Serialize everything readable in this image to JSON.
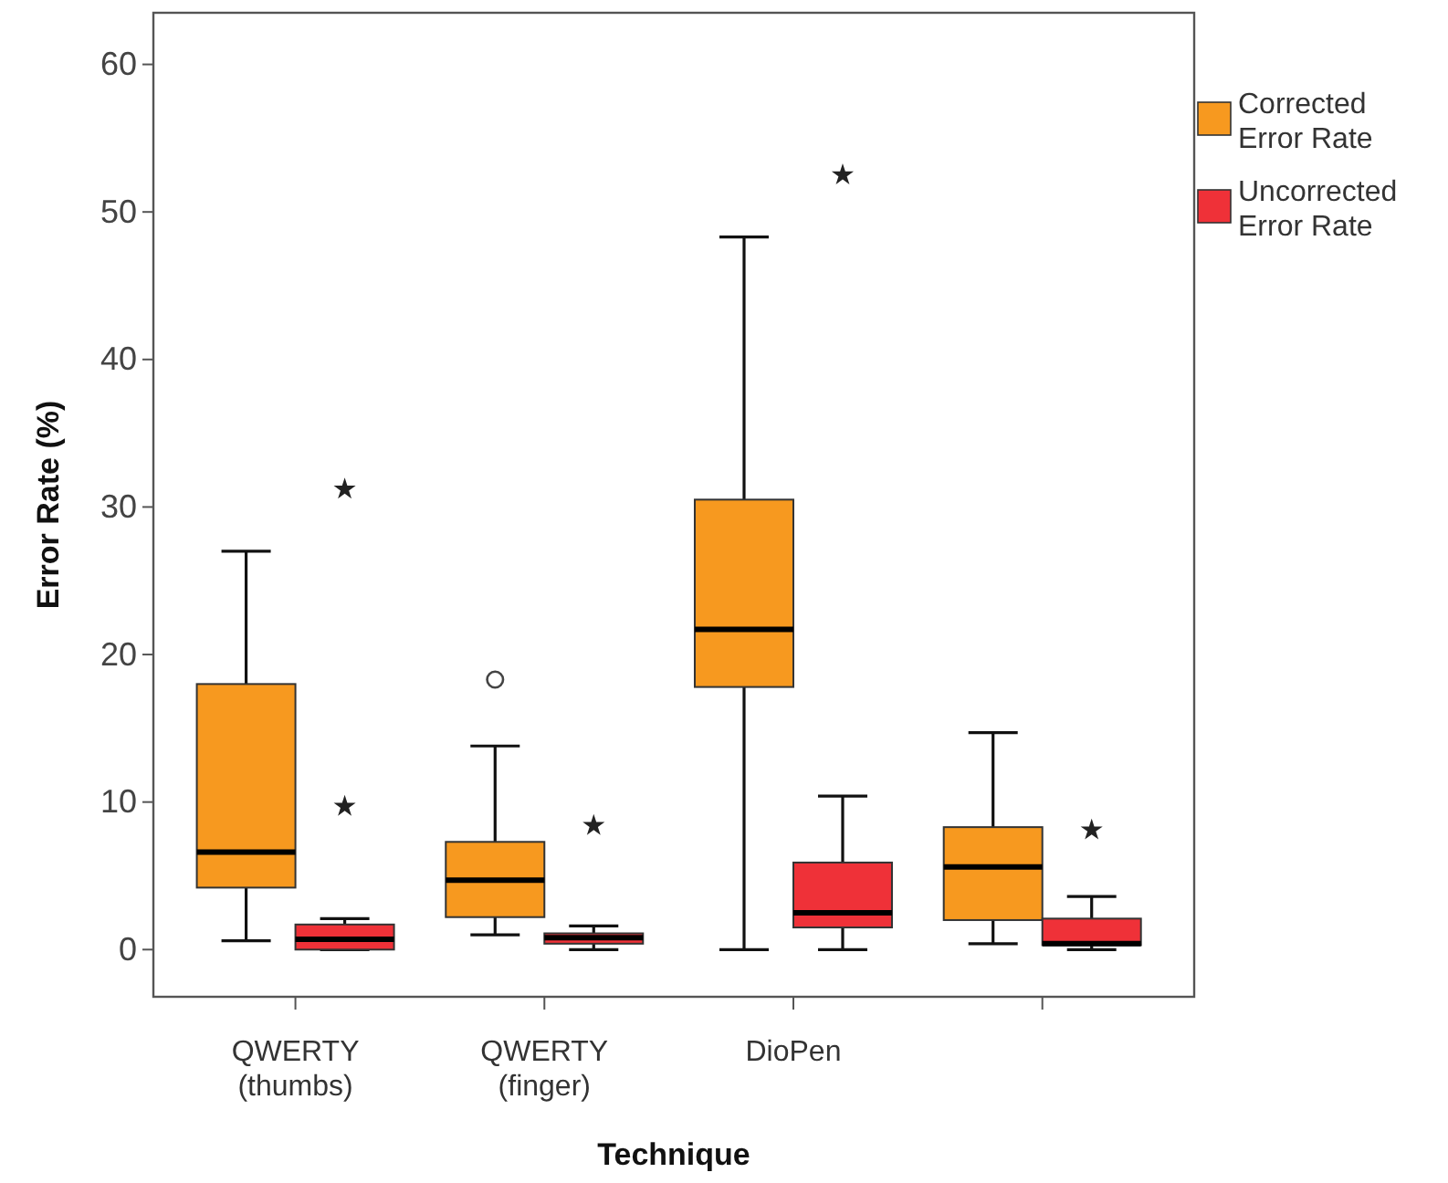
{
  "chart_data": {
    "type": "box",
    "xlabel": "Technique",
    "ylabel": "Error Rate (%)",
    "categories": [
      "QWERTY\n(thumbs)",
      "QWERTY\n(finger)",
      "DioPen",
      null
    ],
    "ylim": [
      -3.2,
      63.5
    ],
    "yticks": [
      0,
      10,
      20,
      30,
      40,
      50,
      60
    ],
    "grid": false,
    "legend": "top right",
    "series": [
      {
        "name": "Corrected\nError Rate",
        "color": "#f7991f",
        "marker": "circle",
        "boxes": [
          {
            "low": 0.6,
            "q1": 4.2,
            "median": 6.6,
            "q3": 18,
            "high": 27
          },
          {
            "low": 1,
            "q1": 2.2,
            "median": 4.7,
            "q3": 7.3,
            "high": 13.8,
            "outliers": [
              18.3
            ]
          },
          {
            "low": 0,
            "q1": 17.8,
            "median": 21.7,
            "q3": 30.5,
            "high": 48.3
          },
          {
            "low": 0.4,
            "q1": 2,
            "median": 5.6,
            "q3": 8.3,
            "high": 14.7
          }
        ]
      },
      {
        "name": "Uncorrected\nError Rate",
        "color": "#ef3138",
        "marker": "star",
        "boxes": [
          {
            "low": 0,
            "q1": 0,
            "median": 0.7,
            "q3": 1.7,
            "high": 2.1,
            "outliers": [
              9.7,
              31.2
            ]
          },
          {
            "low": 0,
            "q1": 0.4,
            "median": 0.8,
            "q3": 1.1,
            "high": 1.6,
            "outliers": [
              8.4
            ]
          },
          {
            "low": 0,
            "q1": 1.5,
            "median": 2.5,
            "q3": 5.9,
            "high": 10.4,
            "outliers": [
              52.5
            ]
          },
          {
            "low": 0,
            "q1": 0.3,
            "median": 0.4,
            "q3": 2.1,
            "high": 3.6,
            "outliers": [
              8.1
            ]
          }
        ]
      }
    ]
  }
}
